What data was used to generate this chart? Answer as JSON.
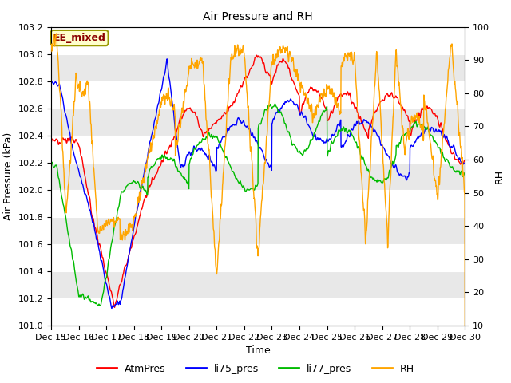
{
  "title": "Air Pressure and RH",
  "xlabel": "Time",
  "ylabel_left": "Air Pressure (kPa)",
  "ylabel_right": "RH",
  "ylim_left": [
    101.0,
    103.2
  ],
  "ylim_right": [
    10,
    100
  ],
  "yticks_left": [
    101.0,
    101.2,
    101.4,
    101.6,
    101.8,
    102.0,
    102.2,
    102.4,
    102.6,
    102.8,
    103.0,
    103.2
  ],
  "yticks_right": [
    10,
    20,
    30,
    40,
    50,
    60,
    70,
    80,
    90,
    100
  ],
  "annotation_text": "EE_mixed",
  "annotation_color": "#8B0000",
  "annotation_bg": "#FFFFCC",
  "annotation_edge": "#999900",
  "colors": {
    "AtmPres": "#FF0000",
    "li75_pres": "#0000FF",
    "li77_pres": "#00BB00",
    "RH": "#FFA500"
  },
  "bg_color": "#FFFFFF",
  "plot_bg": "#FFFFFF",
  "band_color1": "#FFFFFF",
  "band_color2": "#E8E8E8",
  "n_days": 15,
  "linewidth": 1.0,
  "tick_fontsize": 8,
  "label_fontsize": 9,
  "title_fontsize": 10
}
